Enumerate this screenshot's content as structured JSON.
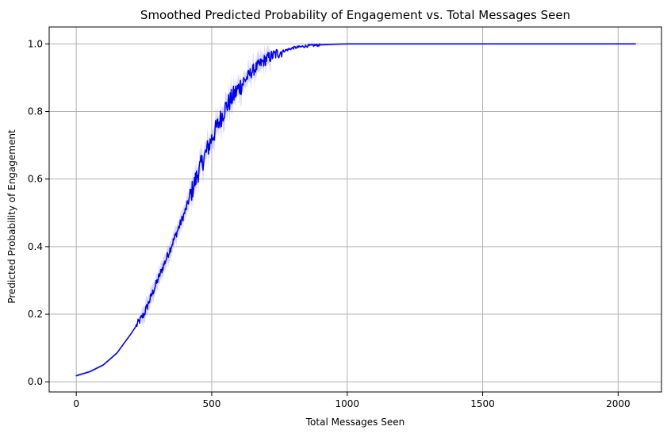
{
  "chart_data": {
    "type": "line",
    "title": "Smoothed Predicted Probability of Engagement vs. Total Messages Seen",
    "xlabel": "Total Messages Seen",
    "ylabel": "Predicted Probability of Engagement",
    "xlim": [
      -100,
      2160
    ],
    "ylim": [
      -0.03,
      1.05
    ],
    "xticks": [
      0,
      500,
      1000,
      1500,
      2000
    ],
    "xtick_labels": [
      "0",
      "500",
      "1000",
      "1500",
      "2000"
    ],
    "yticks": [
      0.0,
      0.2,
      0.4,
      0.6,
      0.8,
      1.0
    ],
    "ytick_labels": [
      "0.0",
      "0.2",
      "0.4",
      "0.6",
      "0.8",
      "1.0"
    ],
    "grid": true,
    "colors": {
      "line": "#0000ee",
      "band": "#6f6fe8",
      "grid": "#b0b0b0",
      "axis": "#000000"
    },
    "series": [
      {
        "x": [
          0,
          50,
          100,
          150,
          200,
          250,
          300,
          350,
          400,
          450,
          500,
          550,
          600,
          650,
          700,
          750,
          800,
          850,
          900,
          950,
          1000,
          1100,
          1200,
          1400,
          1600,
          1800,
          2000,
          2065
        ],
        "values": [
          0.018,
          0.03,
          0.05,
          0.085,
          0.14,
          0.2,
          0.3,
          0.4,
          0.5,
          0.62,
          0.72,
          0.81,
          0.87,
          0.92,
          0.955,
          0.975,
          0.988,
          0.994,
          0.997,
          0.999,
          1.0,
          1.0,
          1.0,
          1.0,
          1.0,
          1.0,
          1.0,
          1.0
        ]
      }
    ]
  }
}
